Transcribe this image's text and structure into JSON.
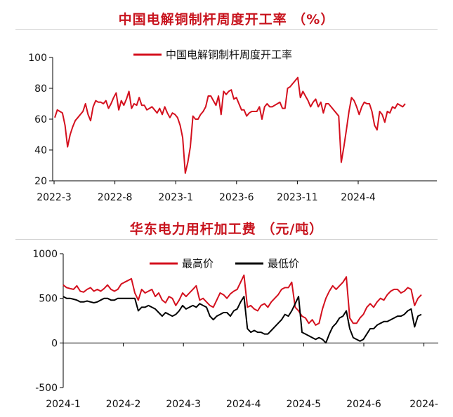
{
  "chart_data": [
    {
      "type": "line",
      "title": "中国电解铜制杆周度开工率 （%）",
      "ylim": [
        20,
        100
      ],
      "yticks": [
        "100",
        "80",
        "60",
        "40",
        "20"
      ],
      "xtick_labels": [
        "2022-3",
        "2022-8",
        "2023-1",
        "2023-6",
        "2023-11",
        "2024-4"
      ],
      "grid": false,
      "legend": "top-center",
      "colors": {
        "series": "#d4101e"
      },
      "series": [
        {
          "name": "中国电解铜制杆周度开工率",
          "values": [
            61,
            66,
            65,
            64,
            56,
            42,
            50,
            55,
            59,
            61,
            63,
            65,
            70,
            63,
            59,
            68,
            72,
            71,
            71,
            70,
            72,
            67,
            70,
            74,
            77,
            66,
            72,
            69,
            73,
            78,
            67,
            70,
            69,
            74,
            69,
            69,
            66,
            67,
            68,
            66,
            64,
            67,
            63,
            68,
            64,
            61,
            64,
            63,
            61,
            56,
            48,
            25,
            32,
            42,
            62,
            60,
            60,
            63,
            65,
            68,
            75,
            75,
            72,
            69,
            75,
            63,
            78,
            76,
            78,
            79,
            73,
            74,
            70,
            66,
            66,
            62,
            64,
            65,
            65,
            65,
            68,
            60,
            68,
            70,
            68,
            68,
            69,
            70,
            71,
            67,
            67,
            80,
            81,
            83,
            85,
            87,
            74,
            78,
            75,
            72,
            68,
            71,
            73,
            68,
            71,
            64,
            70,
            70,
            68,
            66,
            64,
            62,
            32,
            42,
            53,
            65,
            74,
            72,
            68,
            63,
            68,
            71,
            70,
            70,
            65,
            56,
            53,
            65,
            63,
            58,
            65,
            64,
            68,
            67,
            70,
            69,
            68,
            70
          ]
        }
      ]
    },
    {
      "type": "line",
      "title": "华东电力用杆加工费 （元/吨）",
      "ylim": [
        -500,
        1000
      ],
      "yticks": [
        "1000",
        "500",
        "0",
        "-500"
      ],
      "xtick_labels": [
        "2024-1",
        "2024-2",
        "2024-3",
        "2024-4",
        "2024-5",
        "2024-6",
        "2024-"
      ],
      "grid": false,
      "legend": "top-center",
      "colors": {
        "max": "#d4101e",
        "min": "#000000"
      },
      "series": [
        {
          "name": "最高价",
          "values": [
            650,
            620,
            610,
            600,
            640,
            580,
            570,
            600,
            620,
            580,
            600,
            580,
            610,
            650,
            600,
            580,
            600,
            660,
            680,
            700,
            720,
            560,
            480,
            600,
            560,
            580,
            600,
            520,
            560,
            480,
            450,
            520,
            500,
            420,
            480,
            560,
            520,
            560,
            600,
            640,
            480,
            500,
            460,
            420,
            400,
            480,
            560,
            540,
            500,
            550,
            580,
            600,
            680,
            760,
            400,
            420,
            380,
            360,
            420,
            440,
            400,
            460,
            500,
            540,
            600,
            620,
            620,
            680,
            400,
            360,
            300,
            280,
            220,
            260,
            200,
            220,
            380,
            500,
            580,
            640,
            600,
            640,
            680,
            740,
            280,
            220,
            220,
            280,
            320,
            400,
            440,
            400,
            460,
            500,
            480,
            540,
            580,
            600,
            600,
            560,
            580,
            620,
            600,
            420,
            500,
            540
          ]
        },
        {
          "name": "最低价",
          "values": [
            520,
            500,
            500,
            490,
            480,
            460,
            460,
            470,
            460,
            450,
            460,
            480,
            500,
            500,
            480,
            480,
            500,
            500,
            500,
            500,
            500,
            500,
            360,
            400,
            400,
            420,
            400,
            380,
            340,
            300,
            340,
            320,
            300,
            320,
            360,
            420,
            380,
            400,
            420,
            400,
            440,
            420,
            400,
            300,
            260,
            300,
            320,
            340,
            340,
            300,
            360,
            380,
            460,
            520,
            160,
            120,
            140,
            120,
            120,
            100,
            100,
            140,
            180,
            220,
            260,
            320,
            300,
            360,
            440,
            520,
            120,
            100,
            80,
            60,
            40,
            60,
            40,
            0,
            100,
            180,
            220,
            280,
            300,
            360,
            160,
            60,
            40,
            20,
            40,
            100,
            160,
            160,
            200,
            220,
            240,
            240,
            260,
            280,
            300,
            300,
            320,
            360,
            380,
            180,
            300,
            320
          ]
        }
      ]
    }
  ]
}
